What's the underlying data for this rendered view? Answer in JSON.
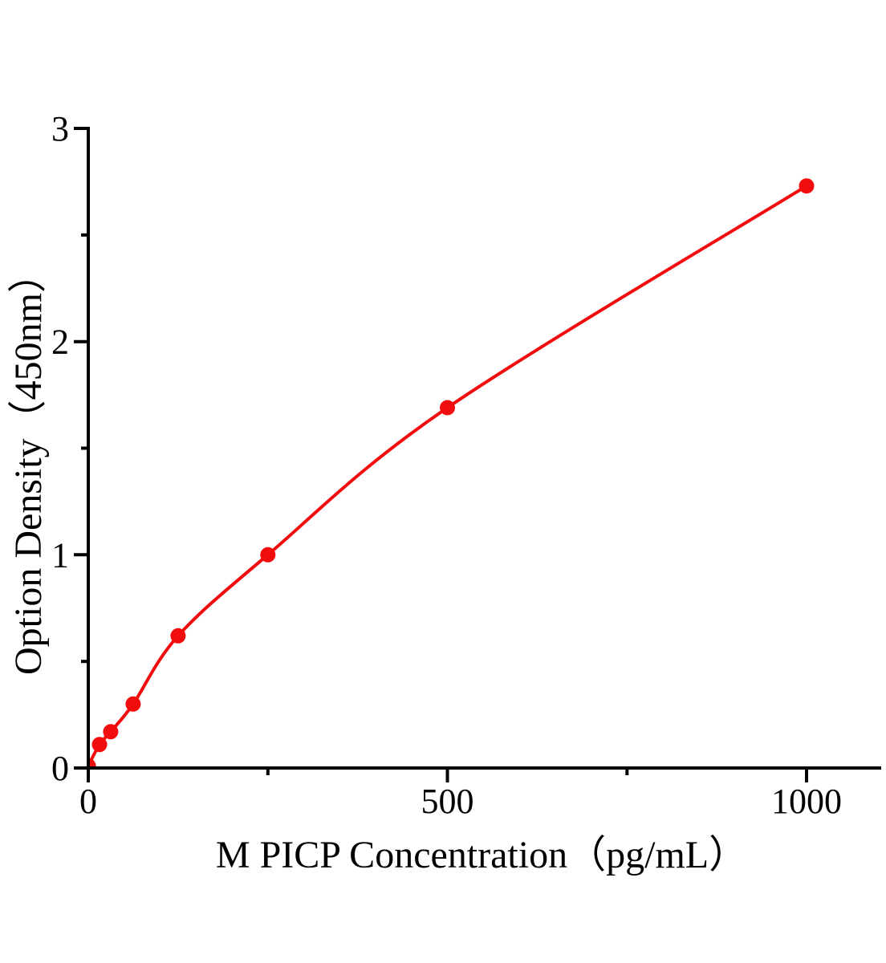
{
  "chart_data": {
    "type": "scatter",
    "subtype": "elisa-standard-curve-with-smooth-line",
    "title": "",
    "xlabel": "M PICP Concentration（pg/mL）",
    "ylabel": "Option Density（450nm）",
    "x": [
      0,
      15.6,
      31.2,
      62.5,
      125,
      250,
      500,
      1000
    ],
    "y": [
      0.01,
      0.11,
      0.17,
      0.3,
      0.62,
      1.0,
      1.69,
      2.73
    ],
    "xlim": [
      0,
      1104
    ],
    "ylim": [
      0,
      3
    ],
    "x_major_ticks": [
      0,
      500,
      1000
    ],
    "x_minor_ticks": [
      250,
      750
    ],
    "y_major_ticks": [
      0,
      1,
      2,
      3
    ],
    "y_minor_ticks": [
      0.5,
      1.5,
      2.5
    ],
    "grid": false,
    "legend": "none",
    "line_color": "#f10d0d",
    "marker_color": "#f10d0d",
    "marker_shape": "circle",
    "axis_color": "#000000",
    "background_color": "#ffffff"
  }
}
